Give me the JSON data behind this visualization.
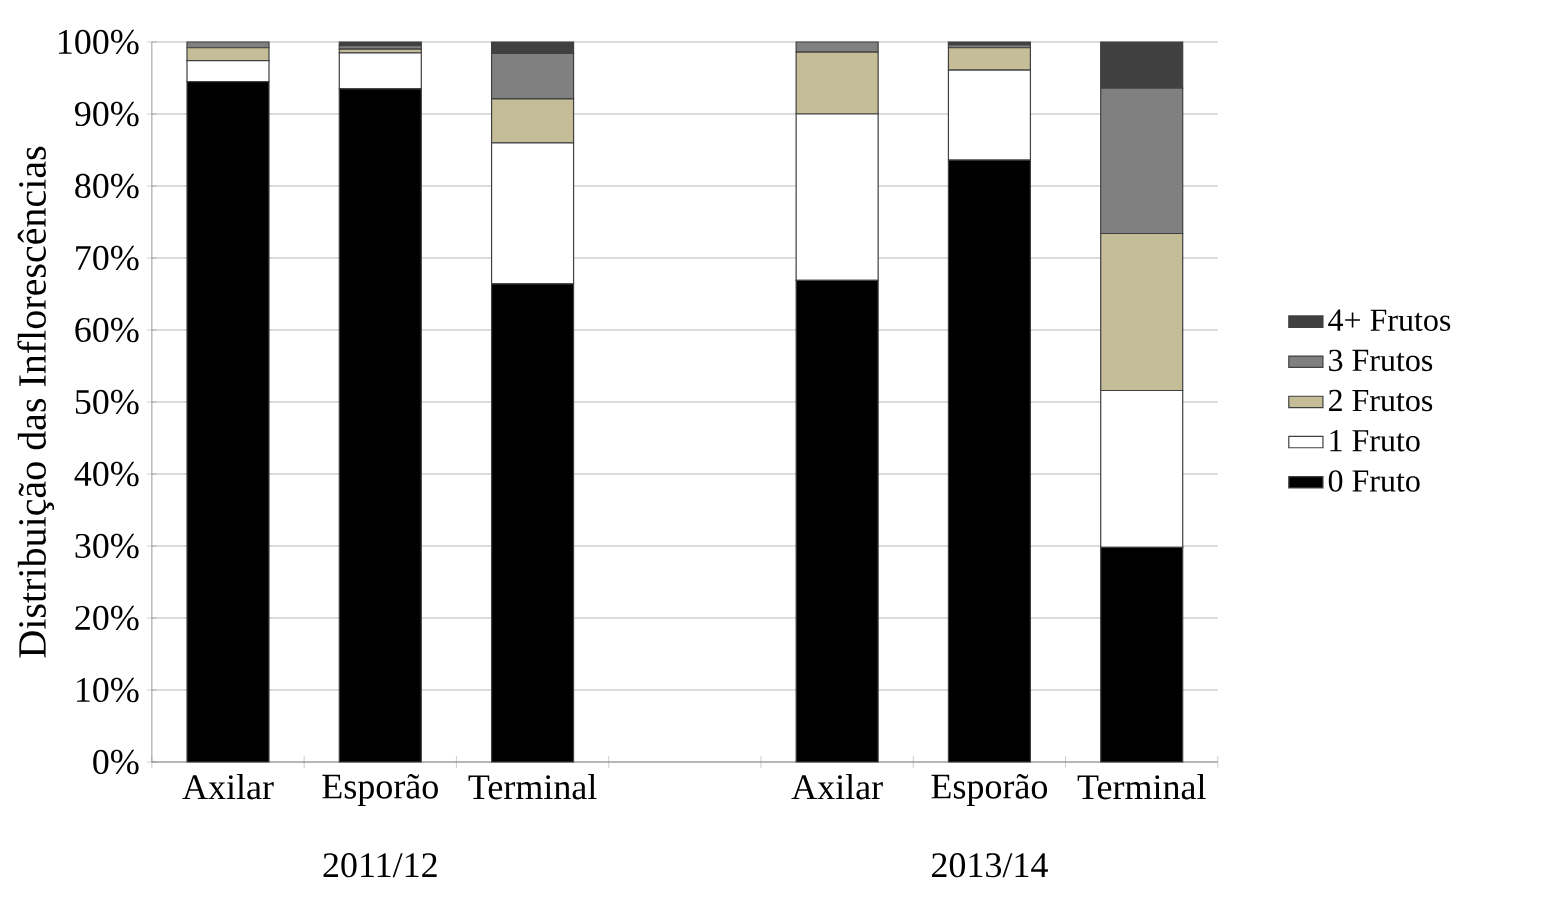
{
  "chart_data": {
    "type": "bar",
    "stacked": true,
    "ylabel": "Distribuição das Inflorescências",
    "categories": [
      "Axilar",
      "Esporão",
      "Terminal",
      null,
      "Axilar",
      "Esporão",
      "Terminal"
    ],
    "annotations": [
      "2011/12",
      "2013/14"
    ],
    "ylim": [
      0,
      100
    ],
    "yticks": [
      {
        "value": 0,
        "label": "0%"
      },
      {
        "value": 10,
        "label": "10%"
      },
      {
        "value": 20,
        "label": "20%"
      },
      {
        "value": 30,
        "label": "30%"
      },
      {
        "value": 40,
        "label": "40%"
      },
      {
        "value": 50,
        "label": "50%"
      },
      {
        "value": 60,
        "label": "60%"
      },
      {
        "value": 70,
        "label": "70%"
      },
      {
        "value": 80,
        "label": "80%"
      },
      {
        "value": 90,
        "label": "90%"
      },
      {
        "value": 100,
        "label": "100%"
      }
    ],
    "grid": "y",
    "legend": "right",
    "series": [
      {
        "name": "0 Fruto",
        "color": "#000000",
        "values": [
          94.5,
          93.5,
          66.4,
          null,
          66.9,
          83.6,
          29.8
        ]
      },
      {
        "name": "1 Fruto",
        "color": "#ffffff",
        "values": [
          2.9,
          5.0,
          19.6,
          null,
          23.1,
          12.5,
          21.8
        ]
      },
      {
        "name": "2 Frutos",
        "color": "#c4bd97",
        "values": [
          1.8,
          0.5,
          6.1,
          null,
          8.6,
          3.1,
          21.8
        ]
      },
      {
        "name": "3 Frutos",
        "color": "#808080",
        "values": [
          0.8,
          0.5,
          6.3,
          null,
          1.4,
          0.4,
          20.2
        ]
      },
      {
        "name": "4+ Frutos",
        "color": "#404040",
        "values": [
          0,
          0.5,
          1.6,
          null,
          0,
          0.4,
          6.4
        ]
      }
    ]
  }
}
